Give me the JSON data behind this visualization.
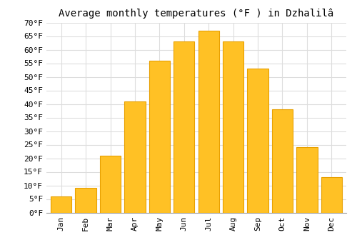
{
  "title": "Average monthly temperatures (°F ) in Dzhalilâ",
  "months": [
    "Jan",
    "Feb",
    "Mar",
    "Apr",
    "May",
    "Jun",
    "Jul",
    "Aug",
    "Sep",
    "Oct",
    "Nov",
    "Dec"
  ],
  "values": [
    6,
    9,
    21,
    41,
    56,
    63,
    67,
    63,
    53,
    38,
    24,
    13
  ],
  "bar_color": "#FFC125",
  "bar_edge_color": "#E8A000",
  "ylim": [
    0,
    70
  ],
  "yticks": [
    0,
    5,
    10,
    15,
    20,
    25,
    30,
    35,
    40,
    45,
    50,
    55,
    60,
    65,
    70
  ],
  "ytick_labels": [
    "0°F",
    "5°F",
    "10°F",
    "15°F",
    "20°F",
    "25°F",
    "30°F",
    "35°F",
    "40°F",
    "45°F",
    "50°F",
    "55°F",
    "60°F",
    "65°F",
    "70°F"
  ],
  "background_color": "#FFFFFF",
  "grid_color": "#DDDDDD",
  "title_fontsize": 10,
  "tick_fontsize": 8,
  "font_family": "monospace",
  "bar_width": 0.85
}
